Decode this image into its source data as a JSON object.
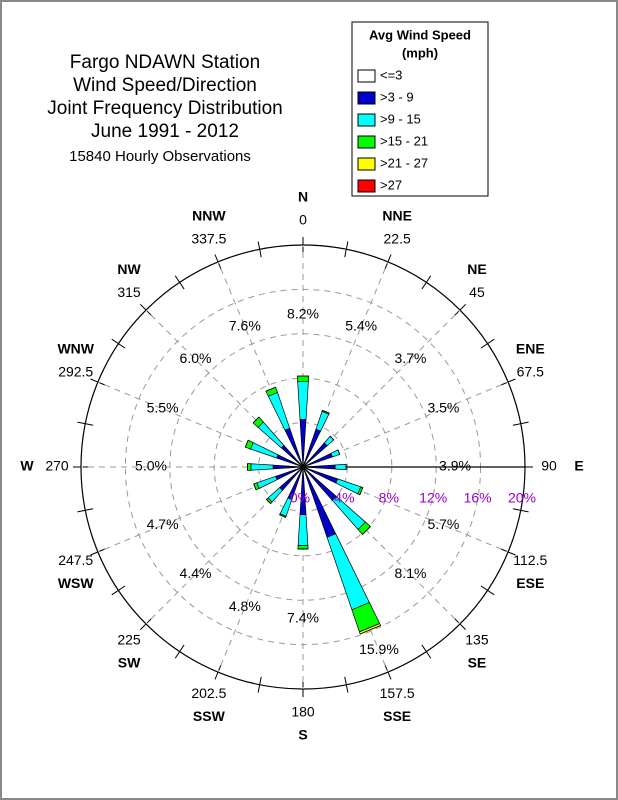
{
  "chart_data": {
    "type": "wind_rose",
    "title": [
      "Fargo NDAWN Station",
      "Wind Speed/Direction",
      "Joint Frequency Distribution",
      "June 1991 - 2012"
    ],
    "subtitle": "15840 Hourly Observations",
    "legend_title": [
      "Avg Wind Speed",
      "(mph)"
    ],
    "directions": [
      "N",
      "NNE",
      "NE",
      "ENE",
      "E",
      "ESE",
      "SE",
      "SSE",
      "S",
      "SSW",
      "SW",
      "WSW",
      "W",
      "WNW",
      "NW",
      "NNW"
    ],
    "angles": [
      0,
      22.5,
      45,
      67.5,
      90,
      112.5,
      135,
      157.5,
      180,
      202.5,
      225,
      247.5,
      270,
      292.5,
      315,
      337.5
    ],
    "totals": [
      8.2,
      5.4,
      3.7,
      3.5,
      3.9,
      5.7,
      8.1,
      15.9,
      7.4,
      4.8,
      4.4,
      4.7,
      5.0,
      5.5,
      6.0,
      7.6
    ],
    "value_labels": [
      "8.2%",
      "5.4%",
      "3.7%",
      "3.5%",
      "3.9%",
      "5.7%",
      "8.1%",
      "15.9%",
      "7.4%",
      "4.8%",
      "4.4%",
      "4.7%",
      "5.0%",
      "5.5%",
      "6.0%",
      "7.6%"
    ],
    "series": [
      {
        "name": "<=3",
        "color": "#ffffff",
        "values": [
          0.4,
          0.4,
          0.4,
          0.4,
          0.4,
          0.4,
          0.4,
          0.4,
          0.4,
          0.4,
          0.4,
          0.4,
          0.4,
          0.4,
          0.4,
          0.4
        ]
      },
      {
        "name": ">3 - 9",
        "color": "#0000cc",
        "values": [
          3.9,
          3.2,
          2.5,
          2.4,
          2.5,
          2.9,
          3.6,
          6.3,
          3.9,
          2.7,
          2.4,
          2.2,
          2.3,
          2.1,
          2.2,
          3.3
        ]
      },
      {
        "name": ">9 - 15",
        "color": "#00ffff",
        "values": [
          3.4,
          1.7,
          0.8,
          0.7,
          1.0,
          2.2,
          3.5,
          6.9,
          2.8,
          1.6,
          1.4,
          1.8,
          2.0,
          2.5,
          2.8,
          3.4
        ]
      },
      {
        "name": ">15 - 21",
        "color": "#00ff00",
        "values": [
          0.5,
          0.1,
          0,
          0,
          0,
          0.2,
          0.6,
          2.1,
          0.3,
          0.1,
          0.2,
          0.3,
          0.3,
          0.5,
          0.6,
          0.5
        ]
      },
      {
        "name": ">21 - 27",
        "color": "#ffff00",
        "values": [
          0,
          0,
          0,
          0,
          0,
          0,
          0,
          0.2,
          0,
          0,
          0,
          0,
          0,
          0,
          0,
          0
        ]
      },
      {
        "name": ">27",
        "color": "#ff0000",
        "values": [
          0,
          0,
          0,
          0,
          0,
          0,
          0,
          0,
          0,
          0,
          0,
          0,
          0,
          0,
          0,
          0
        ]
      }
    ],
    "rlim": [
      0,
      20
    ],
    "rticks": [
      {
        "value": 0,
        "label": "0%"
      },
      {
        "value": 4,
        "label": "4%"
      },
      {
        "value": 8,
        "label": "8%"
      },
      {
        "value": 12,
        "label": "12%"
      },
      {
        "value": 16,
        "label": "16%"
      },
      {
        "value": 20,
        "label": "20%"
      }
    ],
    "rtick_color": "#9900cc",
    "grid": true
  }
}
